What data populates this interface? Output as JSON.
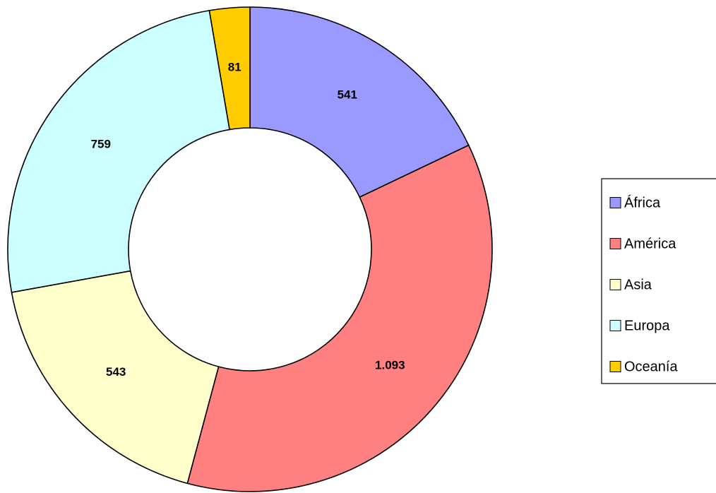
{
  "chart_data": {
    "type": "pie",
    "donut": true,
    "title": "",
    "categories": [
      "África",
      "América",
      "Asia",
      "Europa",
      "Oceanía"
    ],
    "values": [
      541,
      1093,
      543,
      759,
      81
    ],
    "value_labels": [
      "541",
      "1.093",
      "543",
      "759",
      "81"
    ],
    "colors": [
      "#9999ff",
      "#ff8080",
      "#ffffcc",
      "#ccffff",
      "#ffcc00"
    ],
    "legend_position": "right",
    "start": "top",
    "direction": "clockwise"
  }
}
